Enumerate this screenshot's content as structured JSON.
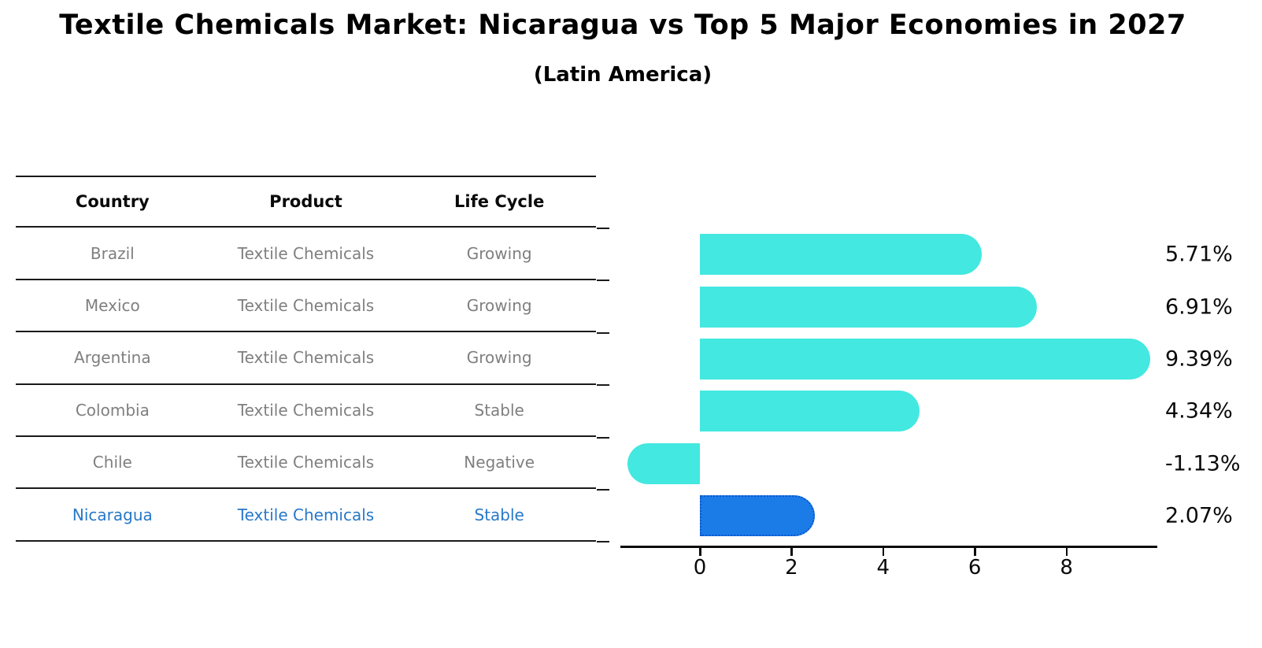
{
  "chart_data": {
    "type": "bar",
    "orientation": "horizontal",
    "title": "Textile Chemicals Market: Nicaragua vs Top 5 Major Economies in 2027",
    "subtitle": "(Latin America)",
    "categories": [
      "Brazil",
      "Mexico",
      "Argentina",
      "Colombia",
      "Chile",
      "Nicaragua"
    ],
    "values": [
      5.71,
      6.91,
      9.39,
      4.34,
      -1.13,
      2.07
    ],
    "value_labels": [
      "5.71%",
      "6.91%",
      "9.39%",
      "4.34%",
      "-1.13%",
      "2.07%"
    ],
    "x_ticks": [
      0,
      2,
      4,
      6,
      8
    ],
    "xlim": [
      -1.8,
      10
    ],
    "grid": "off",
    "legend": "none",
    "highlight_index": 5,
    "bar_color": "#43e8e0",
    "highlight_color": "#1b7ce8",
    "highlight_border_color": "#0e55cc"
  },
  "table": {
    "headers": [
      "Country",
      "Product",
      "Life Cycle"
    ],
    "rows": [
      {
        "country": "Brazil",
        "product": "Textile Chemicals",
        "life_cycle": "Growing",
        "highlight": false
      },
      {
        "country": "Mexico",
        "product": "Textile Chemicals",
        "life_cycle": "Growing",
        "highlight": false
      },
      {
        "country": "Argentina",
        "product": "Textile Chemicals",
        "life_cycle": "Growing",
        "highlight": false
      },
      {
        "country": "Colombia",
        "product": "Textile Chemicals",
        "life_cycle": "Stable",
        "highlight": false
      },
      {
        "country": "Chile",
        "product": "Textile Chemicals",
        "life_cycle": "Negative",
        "highlight": false
      },
      {
        "country": "Nicaragua",
        "product": "Textile Chemicals",
        "life_cycle": "Stable",
        "highlight": true
      }
    ],
    "highlight_text_color": "#2878c8",
    "body_text_color": "#7f7f7f"
  }
}
